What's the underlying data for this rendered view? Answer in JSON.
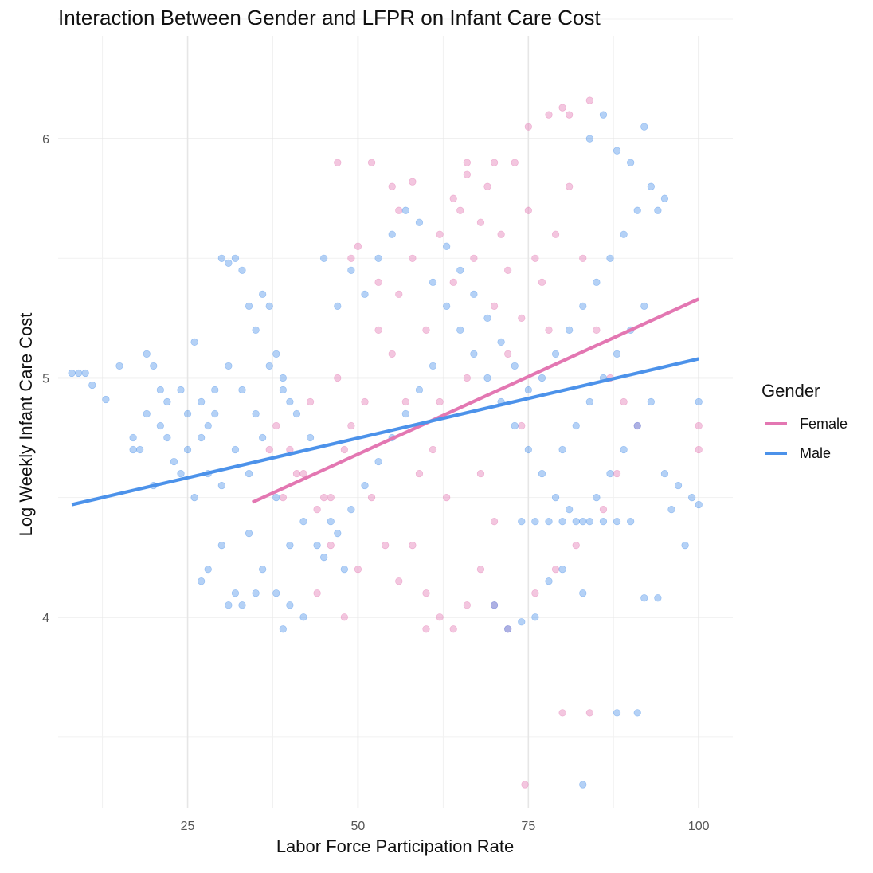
{
  "chart_data": {
    "type": "scatter",
    "title": "Interaction Between Gender and LFPR on Infant Care Cost",
    "xlabel": "Labor Force Participation Rate",
    "ylabel": "Log Weekly Infant Care Cost",
    "xlim": [
      6,
      105
    ],
    "ylim": [
      3.2,
      6.43
    ],
    "x_ticks": [
      25,
      50,
      75,
      100
    ],
    "y_ticks": [
      4,
      5,
      6
    ],
    "grid": true,
    "legend": {
      "title": "Gender",
      "position": "right",
      "entries": [
        {
          "label": "Female",
          "color": "#E377B2"
        },
        {
          "label": "Male",
          "color": "#4C92EA"
        }
      ]
    },
    "series": [
      {
        "name": "Female",
        "color": "#E377B2",
        "trend": {
          "x": [
            34.5,
            100
          ],
          "y": [
            4.48,
            5.33
          ]
        },
        "points": [
          [
            47,
            5.9
          ],
          [
            52,
            5.9
          ],
          [
            55,
            5.8
          ],
          [
            58,
            5.82
          ],
          [
            66,
            5.9
          ],
          [
            70,
            5.9
          ],
          [
            75,
            6.05
          ],
          [
            78,
            6.1
          ],
          [
            80,
            6.13
          ],
          [
            81,
            6.1
          ],
          [
            84,
            6.16
          ],
          [
            49,
            5.5
          ],
          [
            50,
            5.55
          ],
          [
            53,
            5.4
          ],
          [
            56,
            5.7
          ],
          [
            45,
            4.5
          ],
          [
            40,
            4.7
          ],
          [
            42,
            4.6
          ],
          [
            38,
            4.8
          ],
          [
            60,
            5.2
          ],
          [
            62,
            4.9
          ],
          [
            64,
            5.4
          ],
          [
            66,
            5.0
          ],
          [
            68,
            4.6
          ],
          [
            70,
            5.3
          ],
          [
            72,
            5.1
          ],
          [
            74,
            4.8
          ],
          [
            76,
            5.5
          ],
          [
            78,
            5.2
          ],
          [
            58,
            4.3
          ],
          [
            60,
            4.1
          ],
          [
            62,
            4.0
          ],
          [
            64,
            3.95
          ],
          [
            66,
            4.05
          ],
          [
            68,
            4.2
          ],
          [
            70,
            4.4
          ],
          [
            72,
            3.95
          ],
          [
            56,
            4.15
          ],
          [
            54,
            4.3
          ],
          [
            52,
            4.5
          ],
          [
            48,
            4.7
          ],
          [
            46,
            4.3
          ],
          [
            44,
            4.1
          ],
          [
            80,
            3.6
          ],
          [
            84,
            3.6
          ],
          [
            74.5,
            3.3
          ],
          [
            65,
            5.7
          ],
          [
            67,
            5.5
          ],
          [
            69,
            5.8
          ],
          [
            71,
            5.6
          ],
          [
            73,
            5.9
          ],
          [
            75,
            5.7
          ],
          [
            77,
            5.4
          ],
          [
            79,
            5.6
          ],
          [
            81,
            5.8
          ],
          [
            83,
            5.5
          ],
          [
            85,
            5.2
          ],
          [
            87,
            5.0
          ],
          [
            89,
            4.9
          ],
          [
            91,
            4.8
          ],
          [
            100,
            4.8
          ],
          [
            100,
            4.7
          ],
          [
            59,
            4.6
          ],
          [
            61,
            4.7
          ],
          [
            63,
            4.5
          ],
          [
            57,
            4.9
          ],
          [
            55,
            5.1
          ],
          [
            53,
            5.2
          ],
          [
            51,
            4.9
          ],
          [
            49,
            4.8
          ],
          [
            47,
            5.0
          ],
          [
            43,
            4.9
          ],
          [
            41,
            4.6
          ],
          [
            39,
            4.5
          ],
          [
            37,
            4.7
          ],
          [
            44,
            4.45
          ],
          [
            46,
            4.5
          ],
          [
            50,
            4.2
          ],
          [
            48,
            4.0
          ],
          [
            60,
            3.95
          ],
          [
            70,
            4.05
          ],
          [
            76,
            4.1
          ],
          [
            79,
            4.2
          ],
          [
            82,
            4.3
          ],
          [
            86,
            4.45
          ],
          [
            88,
            4.6
          ],
          [
            62,
            5.6
          ],
          [
            64,
            5.75
          ],
          [
            66,
            5.85
          ],
          [
            68,
            5.65
          ],
          [
            72,
            5.45
          ],
          [
            74,
            5.25
          ],
          [
            58,
            5.5
          ],
          [
            56,
            5.35
          ]
        ]
      },
      {
        "name": "Male",
        "color": "#4C92EA",
        "trend": {
          "x": [
            8,
            100
          ],
          "y": [
            4.47,
            5.08
          ]
        },
        "points": [
          [
            8,
            5.02
          ],
          [
            9,
            5.02
          ],
          [
            10,
            5.02
          ],
          [
            11,
            4.97
          ],
          [
            13,
            4.91
          ],
          [
            15,
            5.05
          ],
          [
            17,
            4.7
          ],
          [
            19,
            5.1
          ],
          [
            20,
            5.05
          ],
          [
            21,
            4.8
          ],
          [
            22,
            4.75
          ],
          [
            24,
            4.95
          ],
          [
            25,
            4.7
          ],
          [
            26,
            5.15
          ],
          [
            27,
            4.9
          ],
          [
            28,
            4.6
          ],
          [
            29,
            4.95
          ],
          [
            30,
            5.5
          ],
          [
            31,
            5.48
          ],
          [
            32,
            5.5
          ],
          [
            33,
            5.45
          ],
          [
            34,
            5.3
          ],
          [
            35,
            5.2
          ],
          [
            36,
            5.35
          ],
          [
            37,
            5.3
          ],
          [
            38,
            5.1
          ],
          [
            39,
            5.0
          ],
          [
            40,
            4.9
          ],
          [
            24,
            4.6
          ],
          [
            26,
            4.5
          ],
          [
            28,
            4.8
          ],
          [
            30,
            4.55
          ],
          [
            32,
            4.7
          ],
          [
            34,
            4.6
          ],
          [
            36,
            4.75
          ],
          [
            38,
            4.5
          ],
          [
            18,
            4.7
          ],
          [
            20,
            4.55
          ],
          [
            22,
            4.9
          ],
          [
            40,
            4.3
          ],
          [
            42,
            4.4
          ],
          [
            44,
            4.3
          ],
          [
            46,
            4.4
          ],
          [
            48,
            4.2
          ],
          [
            38,
            4.1
          ],
          [
            40,
            4.05
          ],
          [
            42,
            4.0
          ],
          [
            39,
            3.95
          ],
          [
            36,
            4.2
          ],
          [
            34,
            4.35
          ],
          [
            32,
            4.1
          ],
          [
            30,
            4.3
          ],
          [
            28,
            4.2
          ],
          [
            27,
            4.15
          ],
          [
            31,
            4.05
          ],
          [
            33,
            4.05
          ],
          [
            35,
            4.1
          ],
          [
            45,
            5.5
          ],
          [
            47,
            5.3
          ],
          [
            49,
            5.45
          ],
          [
            51,
            5.35
          ],
          [
            53,
            5.5
          ],
          [
            55,
            5.6
          ],
          [
            57,
            5.7
          ],
          [
            59,
            5.65
          ],
          [
            61,
            5.4
          ],
          [
            63,
            5.3
          ],
          [
            65,
            5.2
          ],
          [
            67,
            5.1
          ],
          [
            69,
            5.0
          ],
          [
            71,
            4.9
          ],
          [
            73,
            4.8
          ],
          [
            75,
            4.7
          ],
          [
            77,
            4.6
          ],
          [
            79,
            4.5
          ],
          [
            81,
            4.45
          ],
          [
            83,
            4.4
          ],
          [
            85,
            4.5
          ],
          [
            87,
            4.6
          ],
          [
            89,
            4.7
          ],
          [
            91,
            4.8
          ],
          [
            93,
            4.9
          ],
          [
            95,
            4.6
          ],
          [
            97,
            4.55
          ],
          [
            99,
            4.5
          ],
          [
            100,
            4.47
          ],
          [
            100,
            4.9
          ],
          [
            98,
            4.3
          ],
          [
            96,
            4.45
          ],
          [
            94,
            4.08
          ],
          [
            92,
            4.08
          ],
          [
            83,
            4.1
          ],
          [
            80,
            4.2
          ],
          [
            78,
            4.15
          ],
          [
            76,
            4.0
          ],
          [
            74,
            3.98
          ],
          [
            72,
            3.95
          ],
          [
            70,
            4.05
          ],
          [
            88,
            3.6
          ],
          [
            91,
            3.6
          ],
          [
            83,
            3.3
          ],
          [
            84,
            6.0
          ],
          [
            86,
            6.1
          ],
          [
            88,
            5.95
          ],
          [
            90,
            5.9
          ],
          [
            92,
            6.05
          ],
          [
            93,
            5.8
          ],
          [
            91,
            5.7
          ],
          [
            89,
            5.6
          ],
          [
            87,
            5.5
          ],
          [
            85,
            5.4
          ],
          [
            83,
            5.3
          ],
          [
            81,
            5.2
          ],
          [
            79,
            5.1
          ],
          [
            77,
            5.0
          ],
          [
            75,
            4.95
          ],
          [
            73,
            5.05
          ],
          [
            71,
            5.15
          ],
          [
            69,
            5.25
          ],
          [
            67,
            5.35
          ],
          [
            65,
            5.45
          ],
          [
            63,
            5.55
          ],
          [
            61,
            5.05
          ],
          [
            59,
            4.95
          ],
          [
            57,
            4.85
          ],
          [
            55,
            4.75
          ],
          [
            53,
            4.65
          ],
          [
            51,
            4.55
          ],
          [
            49,
            4.45
          ],
          [
            47,
            4.35
          ],
          [
            45,
            4.25
          ],
          [
            43,
            4.75
          ],
          [
            41,
            4.85
          ],
          [
            39,
            4.95
          ],
          [
            37,
            5.05
          ],
          [
            35,
            4.85
          ],
          [
            33,
            4.95
          ],
          [
            31,
            5.05
          ],
          [
            29,
            4.85
          ],
          [
            27,
            4.75
          ],
          [
            25,
            4.85
          ],
          [
            23,
            4.65
          ],
          [
            21,
            4.95
          ],
          [
            19,
            4.85
          ],
          [
            17,
            4.75
          ],
          [
            94,
            5.7
          ],
          [
            95,
            5.75
          ],
          [
            92,
            5.3
          ],
          [
            90,
            5.2
          ],
          [
            88,
            5.1
          ],
          [
            86,
            5.0
          ],
          [
            84,
            4.9
          ],
          [
            82,
            4.8
          ],
          [
            80,
            4.7
          ],
          [
            90,
            4.4
          ],
          [
            88,
            4.4
          ],
          [
            86,
            4.4
          ],
          [
            84,
            4.4
          ],
          [
            82,
            4.4
          ],
          [
            80,
            4.4
          ],
          [
            78,
            4.4
          ],
          [
            76,
            4.4
          ],
          [
            74,
            4.4
          ]
        ]
      }
    ]
  }
}
